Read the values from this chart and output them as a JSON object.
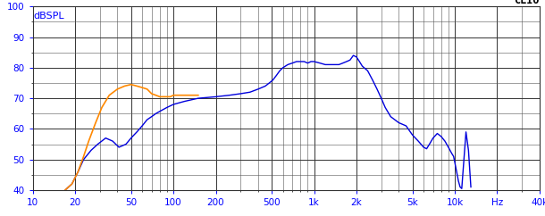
{
  "ylabel": "dBSPL",
  "clio_label": "CLIO",
  "xlim_log": [
    10,
    40000
  ],
  "ylim": [
    40,
    100
  ],
  "yticks": [
    40,
    50,
    60,
    70,
    80,
    90,
    100
  ],
  "xticks": [
    10,
    20,
    50,
    100,
    200,
    500,
    1000,
    2000,
    5000,
    10000,
    20000,
    40000
  ],
  "xticklabels": [
    "10",
    "20",
    "50",
    "100",
    "200",
    "500",
    "1k",
    "2k",
    "5k",
    "10k",
    "Hz",
    "40k"
  ],
  "bg_color": "#ffffff",
  "grid_color": "#555555",
  "grid_major_color": "#333333",
  "blue_color": "#0000dd",
  "orange_color": "#ff8800",
  "blue_curve": [
    [
      17,
      40
    ],
    [
      19,
      42
    ],
    [
      21,
      46
    ],
    [
      23,
      50
    ],
    [
      26,
      53
    ],
    [
      29,
      55
    ],
    [
      33,
      57
    ],
    [
      37,
      56
    ],
    [
      41,
      54
    ],
    [
      46,
      55
    ],
    [
      50,
      57
    ],
    [
      55,
      59
    ],
    [
      60,
      61
    ],
    [
      65,
      63
    ],
    [
      70,
      64
    ],
    [
      75,
      65
    ],
    [
      82,
      66
    ],
    [
      90,
      67
    ],
    [
      100,
      68
    ],
    [
      120,
      69
    ],
    [
      150,
      70
    ],
    [
      200,
      70.5
    ],
    [
      250,
      71
    ],
    [
      300,
      71.5
    ],
    [
      350,
      72
    ],
    [
      400,
      73
    ],
    [
      450,
      74
    ],
    [
      480,
      75
    ],
    [
      510,
      76
    ],
    [
      540,
      77.5
    ],
    [
      570,
      79
    ],
    [
      600,
      80
    ],
    [
      650,
      81
    ],
    [
      700,
      81.5
    ],
    [
      750,
      82
    ],
    [
      800,
      82
    ],
    [
      850,
      82
    ],
    [
      900,
      81.5
    ],
    [
      950,
      82
    ],
    [
      1000,
      82
    ],
    [
      1100,
      81.5
    ],
    [
      1200,
      81
    ],
    [
      1300,
      81
    ],
    [
      1400,
      81
    ],
    [
      1500,
      81
    ],
    [
      1600,
      81.5
    ],
    [
      1700,
      82
    ],
    [
      1800,
      82.5
    ],
    [
      1900,
      84
    ],
    [
      2000,
      83.5
    ],
    [
      2100,
      82
    ],
    [
      2200,
      80.5
    ],
    [
      2400,
      79
    ],
    [
      2600,
      76
    ],
    [
      2800,
      73
    ],
    [
      3000,
      70
    ],
    [
      3200,
      67
    ],
    [
      3500,
      64
    ],
    [
      4000,
      62
    ],
    [
      4500,
      61
    ],
    [
      5000,
      58
    ],
    [
      5500,
      56
    ],
    [
      6000,
      54
    ],
    [
      6300,
      53.5
    ],
    [
      6600,
      55
    ],
    [
      7000,
      57
    ],
    [
      7500,
      58.5
    ],
    [
      8000,
      57.5
    ],
    [
      8500,
      56
    ],
    [
      9000,
      54
    ],
    [
      9500,
      52
    ],
    [
      9800,
      51
    ],
    [
      10000,
      49
    ],
    [
      10300,
      46
    ],
    [
      10600,
      43
    ],
    [
      10900,
      41
    ],
    [
      11200,
      40.5
    ],
    [
      12000,
      59
    ],
    [
      12500,
      53
    ],
    [
      13000,
      41
    ]
  ],
  "orange_curve": [
    [
      17,
      40
    ],
    [
      19,
      42
    ],
    [
      21,
      46
    ],
    [
      23,
      51
    ],
    [
      25,
      56
    ],
    [
      28,
      62
    ],
    [
      31,
      67
    ],
    [
      35,
      71
    ],
    [
      40,
      73
    ],
    [
      45,
      74
    ],
    [
      50,
      74.5
    ],
    [
      55,
      74
    ],
    [
      60,
      73.5
    ],
    [
      65,
      73
    ],
    [
      70,
      71.5
    ],
    [
      75,
      71
    ],
    [
      80,
      70.5
    ],
    [
      85,
      70.5
    ],
    [
      90,
      70.5
    ],
    [
      95,
      70.5
    ],
    [
      100,
      71
    ],
    [
      110,
      71
    ],
    [
      120,
      71
    ],
    [
      130,
      71
    ],
    [
      140,
      71
    ],
    [
      150,
      71
    ]
  ]
}
